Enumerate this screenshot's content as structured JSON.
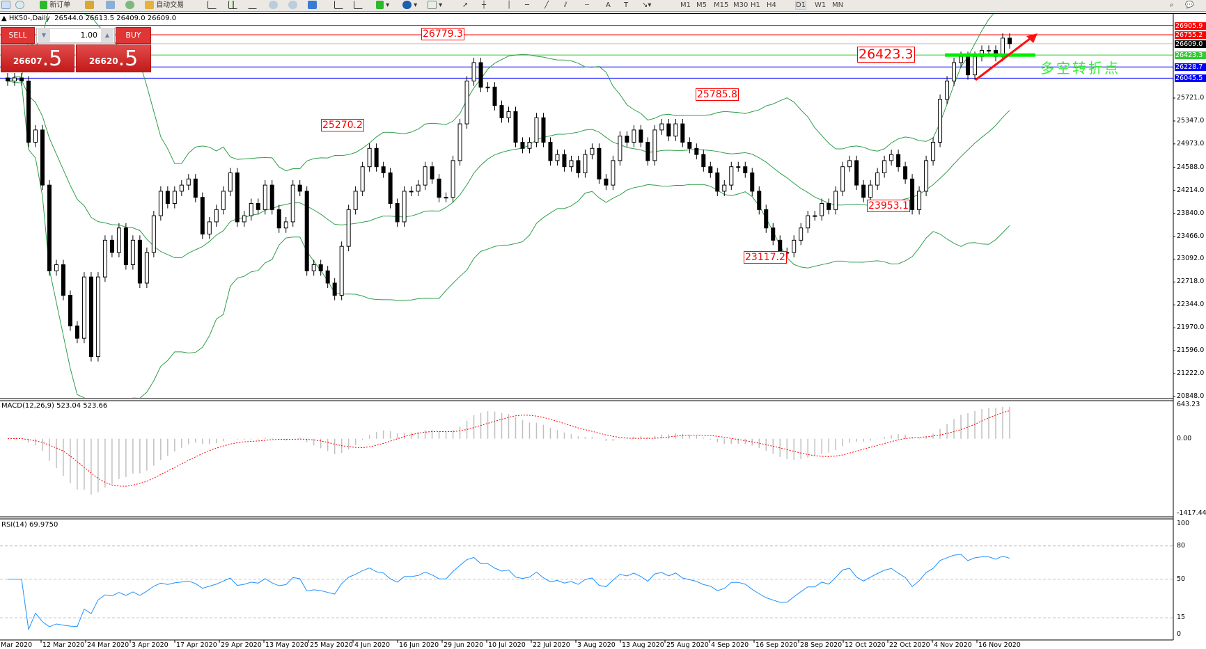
{
  "toolbar": {
    "new_order_label": "新订单",
    "autotrade_label": "自动交易",
    "timeframes": [
      "M1",
      "M5",
      "M15",
      "M30",
      "H1",
      "H4",
      "D1",
      "W1",
      "MN"
    ],
    "active_timeframe": "D1"
  },
  "chart_header": {
    "symbol": "HK50-,Daily",
    "ohlc": "26544.0 26613.5 26409.0 26609.0"
  },
  "trade_panel": {
    "sell_label": "SELL",
    "buy_label": "BUY",
    "lot": "1.00",
    "sell_price_main": "26607",
    "sell_price_big": ".5",
    "buy_price_main": "26620",
    "buy_price_big": ".5",
    "color": "#e03535"
  },
  "chart_data": {
    "type": "candlestick",
    "symbol": "HK50-",
    "timeframe": "Daily",
    "closes": [
      26000,
      26050,
      26000,
      25000,
      25200,
      24300,
      22900,
      23000,
      22500,
      22000,
      21800,
      22800,
      21500,
      22800,
      23400,
      23200,
      23600,
      23000,
      23400,
      22700,
      23200,
      23800,
      24200,
      24000,
      24200,
      24300,
      24400,
      24100,
      23500,
      23700,
      23900,
      24200,
      24500,
      23700,
      23800,
      24000,
      23900,
      24300,
      23900,
      23600,
      23700,
      24300,
      24200,
      22900,
      23000,
      22900,
      22700,
      22500,
      23300,
      23900,
      24200,
      24600,
      24900,
      24600,
      24500,
      24000,
      23700,
      24200,
      24200,
      24300,
      24600,
      24400,
      24100,
      24100,
      24700,
      25300,
      26000,
      26300,
      25900,
      25900,
      25600,
      25400,
      25500,
      25000,
      24900,
      25000,
      25400,
      25000,
      24700,
      24800,
      24600,
      24700,
      24500,
      24800,
      24900,
      24400,
      24300,
      24700,
      25100,
      25000,
      25200,
      25000,
      24700,
      25200,
      25300,
      25100,
      25300,
      25000,
      24900,
      24800,
      24600,
      24500,
      24200,
      24300,
      24600,
      24600,
      24500,
      24200,
      23900,
      23600,
      23400,
      23200,
      23200,
      23400,
      23600,
      23800,
      23800,
      24000,
      23900,
      24200,
      24600,
      24700,
      24300,
      24100,
      24300,
      24500,
      24700,
      24800,
      24600,
      24400,
      23900,
      24200,
      24700,
      25000,
      25700,
      26000,
      26300,
      26400,
      26100,
      26400,
      26500,
      26500,
      26400,
      26700,
      26609
    ],
    "y_ticks": [
      "25721.0",
      "25347.0",
      "24973.0",
      "24588.0",
      "24214.0",
      "23840.0",
      "23466.0",
      "23092.0",
      "22718.0",
      "22344.0",
      "21970.0",
      "21596.0",
      "21222.0",
      "20848.0"
    ],
    "y_tick_values": [
      25721,
      25347,
      24973,
      24588,
      24214,
      23840,
      23466,
      23092,
      22718,
      22344,
      21970,
      21596,
      21222,
      20848
    ],
    "x_labels": [
      "Mar 2020",
      "12 Mar 2020",
      "24 Mar 2020",
      "3 Apr 2020",
      "17 Apr 2020",
      "29 Apr 2020",
      "13 May 2020",
      "25 May 2020",
      "4 Jun 2020",
      "16 Jun 2020",
      "29 Jun 2020",
      "10 Jul 2020",
      "22 Jul 2020",
      "3 Aug 2020",
      "13 Aug 2020",
      "25 Aug 2020",
      "4 Sep 2020",
      "16 Sep 2020",
      "28 Sep 2020",
      "12 Oct 2020",
      "22 Oct 2020",
      "4 Nov 2020",
      "16 Nov 2020"
    ],
    "price_lines": [
      {
        "label": "26905.9",
        "value": 26905.9,
        "color": "#ff0000"
      },
      {
        "label": "26755.2",
        "value": 26755.2,
        "color": "#ff0000"
      },
      {
        "label": "26609.0",
        "value": 26609.0,
        "color": "#000000",
        "line": "#c0c0c0"
      },
      {
        "label": "26423.3",
        "value": 26423.3,
        "color": "#33cc33"
      },
      {
        "label": "26228.7",
        "value": 26228.7,
        "color": "#0000ff"
      },
      {
        "label": "26045.5",
        "value": 26045.5,
        "color": "#0000ff"
      }
    ],
    "annotations": [
      {
        "text": "26779.3"
      },
      {
        "text": "25270.2"
      },
      {
        "text": "25785.8"
      },
      {
        "text": "23953.1"
      },
      {
        "text": "23117.2"
      },
      {
        "text": "26423.3"
      }
    ],
    "note_text": "多空转折点",
    "overlay": "Bollinger Bands",
    "band_color": "#2e9e4a",
    "macd": {
      "label": "MACD(12,26,9) 523.04 523.66",
      "ticks": [
        "643.23",
        "0.00",
        "-1417.44"
      ],
      "range": [
        -1417.44,
        643.23
      ],
      "hist_color": "#c0c0c0",
      "signal_color": "#ff0000"
    },
    "rsi": {
      "label": "RSI(14) 69.9750",
      "ticks": [
        "100",
        "80",
        "50",
        "15",
        "0"
      ],
      "levels": [
        80,
        50,
        15
      ],
      "color": "#1e90ff"
    }
  }
}
